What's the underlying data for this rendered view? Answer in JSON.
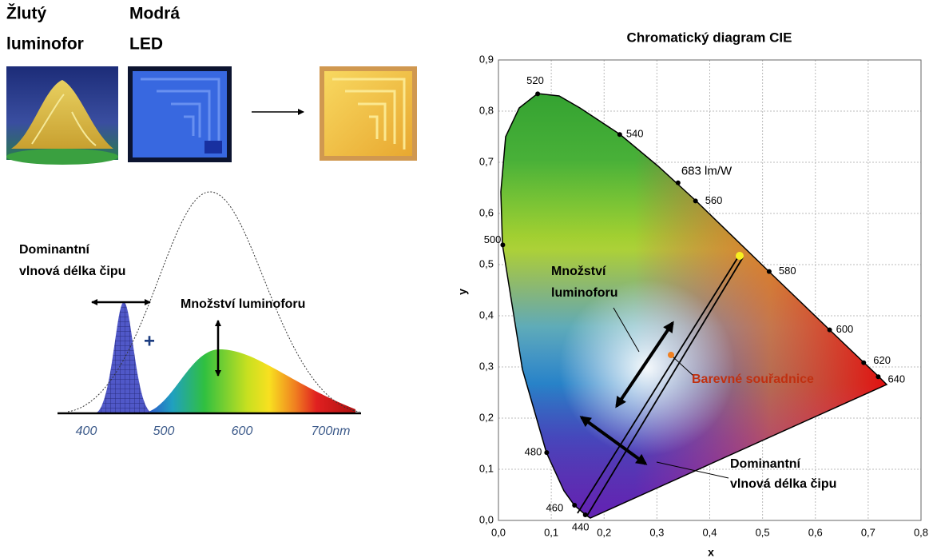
{
  "top": {
    "phosphor_label": [
      "Žlutý",
      "luminofor"
    ],
    "led_label": [
      "Modrá",
      "LED"
    ]
  },
  "spectrum": {
    "dominant_label": [
      "Dominantní",
      "vlnová délka čipu"
    ],
    "phosphor_amount_label": "Množství luminoforu",
    "plus": "+",
    "axis_labels": [
      "400",
      "500",
      "600",
      "700nm"
    ]
  },
  "cie": {
    "title": "Chromatický diagram CIE",
    "x_label": "x",
    "y_label": "y",
    "xticks": [
      {
        "value": 0,
        "label": "0,0"
      },
      {
        "value": 0.1,
        "label": "0,1"
      },
      {
        "value": 0.2,
        "label": "0,2"
      },
      {
        "value": 0.3,
        "label": "0,3"
      },
      {
        "value": 0.4,
        "label": "0,4"
      },
      {
        "value": 0.5,
        "label": "0,5"
      },
      {
        "value": 0.6,
        "label": "0,6"
      },
      {
        "value": 0.7,
        "label": "0,7"
      },
      {
        "value": 0.8,
        "label": "0,8"
      }
    ],
    "yticks": [
      {
        "value": 0,
        "label": "0,0"
      },
      {
        "value": 0.1,
        "label": "0,1"
      },
      {
        "value": 0.2,
        "label": "0,2"
      },
      {
        "value": 0.3,
        "label": "0,3"
      },
      {
        "value": 0.4,
        "label": "0,4"
      },
      {
        "value": 0.5,
        "label": "0,5"
      },
      {
        "value": 0.6,
        "label": "0,6"
      },
      {
        "value": 0.7,
        "label": "0,7"
      },
      {
        "value": 0.8,
        "label": "0,8"
      },
      {
        "value": 0.9,
        "label": "0,9"
      }
    ],
    "locus_points": [
      {
        "label": "520",
        "x": 0.0743,
        "y": 0.8338
      },
      {
        "label": "540",
        "x": 0.2296,
        "y": 0.7543
      },
      {
        "label": "560",
        "x": 0.3731,
        "y": 0.6245
      },
      {
        "label": "580",
        "x": 0.5125,
        "y": 0.4866
      },
      {
        "label": "600",
        "x": 0.627,
        "y": 0.3725
      },
      {
        "label": "620",
        "x": 0.6915,
        "y": 0.3083
      },
      {
        "label": "640",
        "x": 0.719,
        "y": 0.2809
      },
      {
        "label": "500",
        "x": 0.0082,
        "y": 0.5384
      },
      {
        "label": "480",
        "x": 0.0913,
        "y": 0.1327
      },
      {
        "label": "460",
        "x": 0.144,
        "y": 0.0297
      },
      {
        "label": "440",
        "x": 0.1644,
        "y": 0.0109
      }
    ],
    "efficacy_point": {
      "label": "683 lm/W",
      "x": 0.34,
      "y": 0.66
    },
    "annotations": {
      "phosphor_amount": [
        "Množství",
        "luminoforu"
      ],
      "coordinates": "Barevné souřadnice",
      "dominant": [
        "Dominantní",
        "vlnová délka čipu"
      ]
    }
  }
}
